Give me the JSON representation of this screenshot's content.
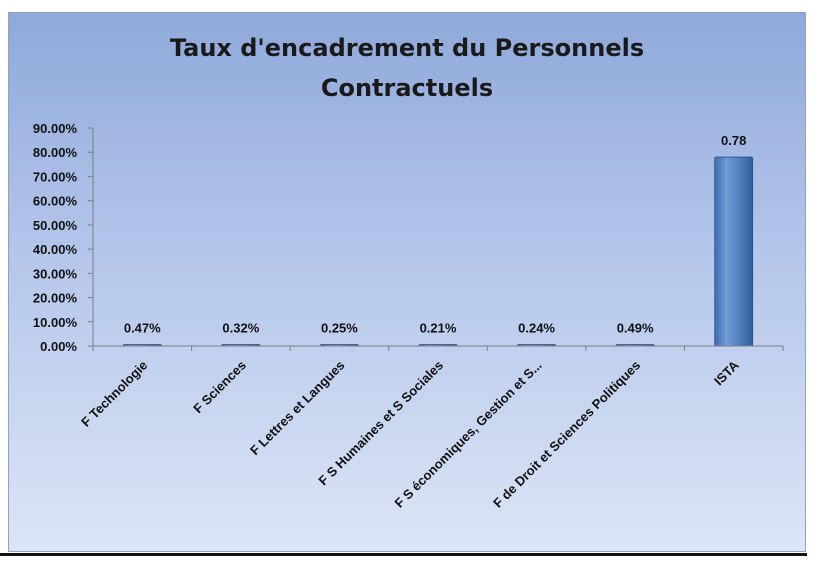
{
  "chart_data": {
    "type": "bar",
    "title": "Taux d'encadrement du Personnels Contractuels",
    "title_lines": [
      "Taux d'encadrement du Personnels",
      "Contractuels"
    ],
    "categories": [
      "F Technologie",
      "F Sciences",
      "F Lettres et Langues",
      "F S Humaines et S Sociales",
      "F S économiques, Gestion et S...",
      "F de Droit et Sciences Politiques",
      "ISTA"
    ],
    "values": [
      0.0047,
      0.0032,
      0.0025,
      0.0021,
      0.0024,
      0.0049,
      0.78
    ],
    "data_labels": [
      "0.47%",
      "0.32%",
      "0.25%",
      "0.21%",
      "0.24%",
      "0.49%",
      "0.78"
    ],
    "ylim": [
      0,
      0.9
    ],
    "y_ticks": [
      0,
      0.1,
      0.2,
      0.3,
      0.4,
      0.5,
      0.6,
      0.7,
      0.8,
      0.9
    ],
    "y_tick_labels": [
      "0.00%",
      "10.00%",
      "20.00%",
      "30.00%",
      "40.00%",
      "50.00%",
      "60.00%",
      "70.00%",
      "80.00%",
      "90.00%"
    ],
    "xlabel": "",
    "ylabel": "",
    "grid": false,
    "legend": "none",
    "bar_color": "#4f81bd"
  }
}
